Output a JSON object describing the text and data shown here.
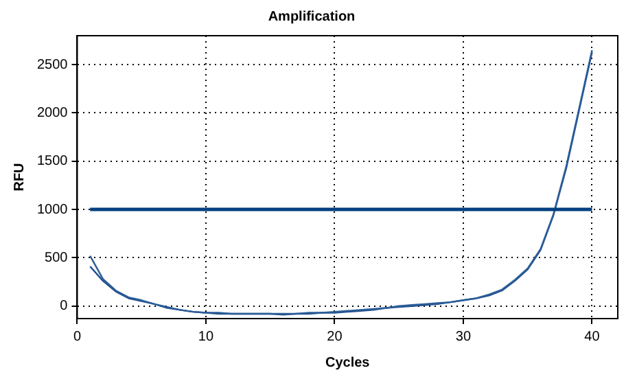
{
  "chart_data": {
    "type": "line",
    "title": "Amplification",
    "xlabel": "Cycles",
    "ylabel": "RFU",
    "x": [
      1,
      2,
      3,
      4,
      5,
      6,
      7,
      8,
      9,
      10,
      11,
      12,
      13,
      14,
      15,
      16,
      17,
      18,
      19,
      20,
      21,
      22,
      23,
      24,
      25,
      26,
      27,
      28,
      29,
      30,
      31,
      32,
      33,
      34,
      35,
      36,
      37,
      38,
      39,
      40
    ],
    "series": [
      {
        "color": "#2b5d98",
        "values": [
          520,
          280,
          160,
          90,
          60,
          20,
          -10,
          -40,
          -60,
          -70,
          -70,
          -80,
          -80,
          -80,
          -80,
          -80,
          -80,
          -70,
          -70,
          -60,
          -50,
          -40,
          -30,
          -20,
          0,
          10,
          20,
          30,
          40,
          60,
          80,
          120,
          170,
          270,
          390,
          590,
          950,
          1450,
          2050,
          2650
        ]
      },
      {
        "color": "#1f4e8c",
        "values": [
          410,
          260,
          150,
          80,
          50,
          20,
          -20,
          -40,
          -60,
          -70,
          -80,
          -80,
          -80,
          -80,
          -80,
          -90,
          -80,
          -80,
          -70,
          -70,
          -60,
          -50,
          -40,
          -20,
          -10,
          0,
          10,
          20,
          40,
          60,
          80,
          110,
          160,
          260,
          380,
          580,
          940,
          1430,
          2030,
          2630
        ]
      }
    ],
    "xlim": [
      0,
      42
    ],
    "xticks": [
      0,
      10,
      20,
      30,
      40
    ],
    "ylim": [
      -130,
      2800
    ],
    "yticks": [
      0,
      500,
      1000,
      1500,
      2000,
      2500
    ],
    "ref_lines": [
      {
        "axis": "y",
        "value": 1000,
        "color": "#003f7f"
      }
    ],
    "grid": true,
    "legend": false,
    "marker": "none",
    "line_style": "solid"
  }
}
